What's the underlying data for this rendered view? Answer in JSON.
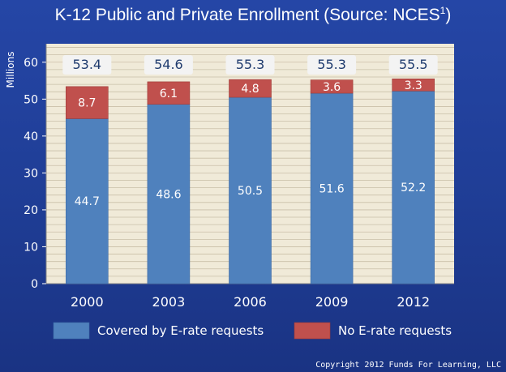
{
  "title": "K-12 Public and Private Enrollment (Source: NCES",
  "title_superscript": "1",
  "title_suffix": ")",
  "copyright": "Copyright 2012 Funds For Learning, LLC",
  "chart_data": {
    "type": "bar",
    "stacked": true,
    "title": "K-12 Public and Private Enrollment (Source: NCES1)",
    "ylabel": "Millions",
    "xlabel": "",
    "ylim": [
      0,
      65
    ],
    "yticks": [
      0,
      10,
      20,
      30,
      40,
      50,
      60
    ],
    "categories": [
      "2000",
      "2003",
      "2006",
      "2009",
      "2012"
    ],
    "series": [
      {
        "name": "Covered by E-rate requests",
        "values": [
          44.7,
          48.6,
          50.5,
          51.6,
          52.2
        ],
        "color": "#4f81bd"
      },
      {
        "name": "No E-rate requests",
        "values": [
          8.7,
          6.1,
          4.8,
          3.6,
          3.3
        ],
        "color": "#c0504d"
      }
    ],
    "totals": [
      53.4,
      54.6,
      55.3,
      55.3,
      55.5
    ],
    "legend_position": "bottom",
    "grid": true,
    "plot_background": "#f0ead8",
    "total_label_background": "#f3f3f3"
  }
}
